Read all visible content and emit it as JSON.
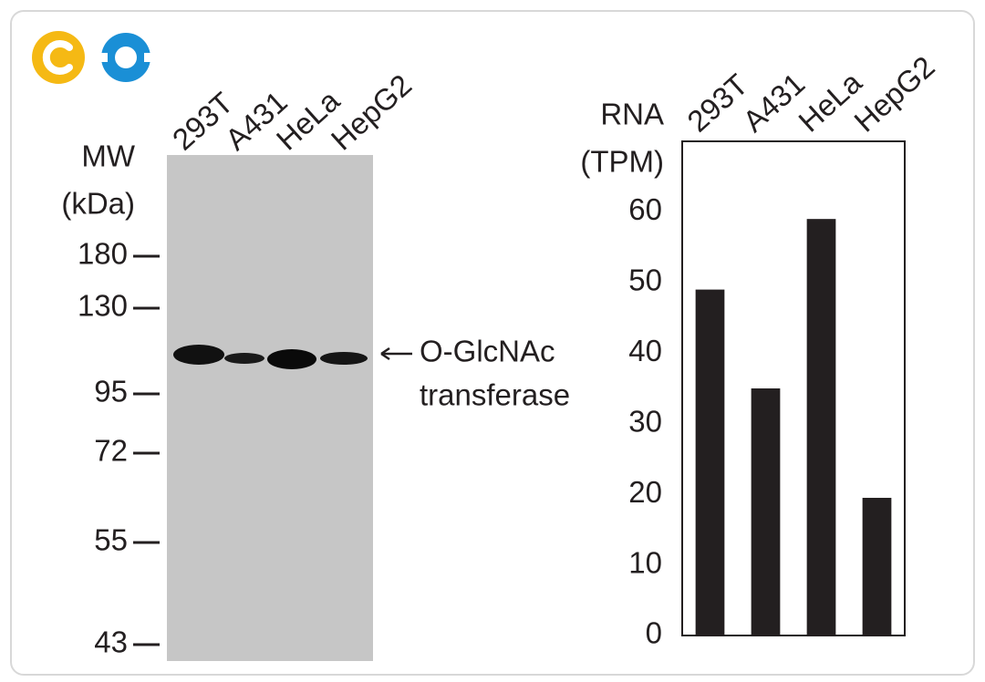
{
  "blot": {
    "mw_label": [
      "MW",
      "(kDa)"
    ],
    "lanes": [
      "293T",
      "A431",
      "HeLa",
      "HepG2"
    ],
    "markers": [
      180,
      130,
      95,
      72,
      55,
      43
    ],
    "band_label": [
      "O-GlcNAc",
      "transferase"
    ]
  },
  "chart_data": {
    "type": "bar",
    "y_label": [
      "RNA",
      "(TPM)"
    ],
    "categories": [
      "293T",
      "A431",
      "HeLa",
      "HepG2"
    ],
    "values": [
      49,
      35,
      59,
      19.5
    ],
    "color": "#231f20",
    "ylim": [
      0,
      70
    ],
    "yticks": [
      0,
      10,
      20,
      30,
      40,
      50,
      60
    ]
  }
}
